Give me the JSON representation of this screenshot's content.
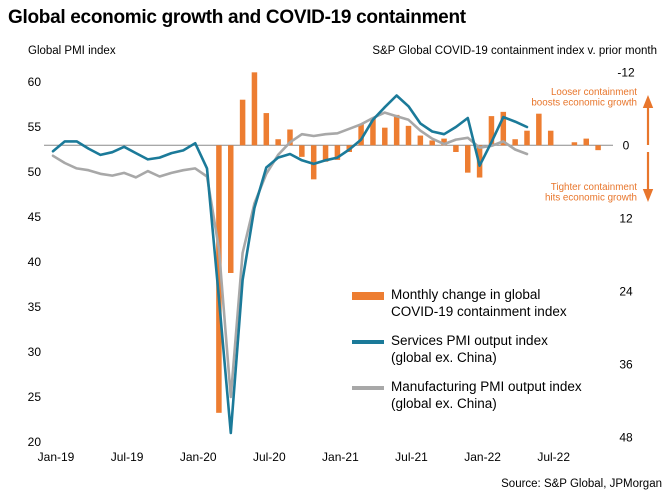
{
  "title": "Global economic growth and COVID-19 containment",
  "left_axis_title": "Global PMI index",
  "right_axis_title": "S&P Global COVID-19 containment index v. prior month",
  "source": "Source: S&P Global, JPMorgan",
  "colors": {
    "bars_orange": "#ED7D31",
    "services_teal": "#1B7A99",
    "manufacturing_gray": "#A8A8A8",
    "zero_line_gray": "#8C8C8C",
    "annotation_orange": "#E8762C",
    "text_black": "#000000"
  },
  "annotations": {
    "looser_lines": [
      "Looser containment",
      "boosts economic growth"
    ],
    "tighter_lines": [
      "Tighter containment",
      "hits economic growth"
    ],
    "looser_arrow": "up-arrow",
    "tighter_arrow": "down-arrow"
  },
  "legend": {
    "items": [
      {
        "label": "Monthly change in global COVID-19 containment index",
        "swatch": "bar",
        "color": "#ED7D31"
      },
      {
        "label": "Services PMI output index (global ex. China)",
        "swatch": "line",
        "color": "#1B7A99"
      },
      {
        "label": "Manufacturing PMI output index (global ex. China)",
        "swatch": "line",
        "color": "#A8A8A8"
      }
    ]
  },
  "chart_data": {
    "type": "bar+line",
    "frequency": "monthly",
    "x_start": "Jan-19",
    "x_tick_labels": [
      "Jan-19",
      "Jul-19",
      "Jan-20",
      "Jul-20",
      "Jan-21",
      "Jul-21",
      "Jan-22",
      "Jul-22"
    ],
    "left_axis": {
      "label": "Global PMI index",
      "ticks": [
        60,
        55,
        50,
        45,
        40,
        35,
        30,
        25,
        20
      ],
      "range": [
        20,
        60
      ]
    },
    "right_axis": {
      "label": "S&P Global COVID-19 containment index v. prior month",
      "ticks": [
        -12,
        0,
        12,
        24,
        36,
        48
      ],
      "range": [
        -12,
        48
      ],
      "inverted": true,
      "zero_aligned_with_left": 53
    },
    "grid": "zero-line-only",
    "legend_position": "inside-lower-right",
    "series": [
      {
        "name": "Monthly change in global COVID-19 containment index",
        "type": "bar",
        "axis": "right",
        "color": "#ED7D31",
        "start": "Mar-20",
        "start_index": 14,
        "values": [
          44,
          21,
          -7.5,
          -12,
          -5.3,
          -1,
          -2.6,
          1.9,
          5.6,
          2.7,
          2.4,
          1.1,
          -3.5,
          -4.5,
          -2.9,
          -5,
          -3.2,
          -1.6,
          -0.8,
          -1.1,
          1.1,
          4.5,
          5.3,
          -4.8,
          -5.5,
          -1,
          -2.4,
          -5.2,
          -2.4,
          0,
          -0.5,
          -1.1,
          0.8
        ]
      },
      {
        "name": "Services PMI output index (global ex. China)",
        "type": "line",
        "axis": "left",
        "color": "#1B7A99",
        "start": "Jan-19",
        "start_index": 0,
        "values": [
          52.3,
          53.4,
          53.4,
          52.6,
          51.9,
          52.2,
          52.8,
          52.1,
          51.4,
          51.6,
          52.1,
          52.4,
          53.2,
          50.4,
          36,
          21,
          38,
          46,
          50.5,
          51.6,
          52,
          51.3,
          50.9,
          51.3,
          51.6,
          52.5,
          53.6,
          55.8,
          57.2,
          58.5,
          57.3,
          55.4,
          54.5,
          54.2,
          55,
          56,
          50.7,
          53.3,
          56.1,
          55.6,
          55
        ]
      },
      {
        "name": "Manufacturing PMI output index (global ex. China)",
        "type": "line",
        "axis": "left",
        "color": "#A8A8A8",
        "start": "Jan-19",
        "start_index": 0,
        "values": [
          51.8,
          51,
          50.4,
          50.2,
          49.8,
          49.6,
          49.9,
          49.4,
          50.1,
          49.5,
          49.9,
          50.2,
          50.4,
          49.5,
          41.5,
          25,
          41,
          46.5,
          49.8,
          51.9,
          53.3,
          54.2,
          54,
          54.2,
          54.3,
          54.8,
          55.3,
          56,
          56.6,
          56.2,
          55.8,
          54.6,
          53.7,
          53.1,
          53.6,
          53.8,
          52.7,
          52.9,
          53.4,
          52.5,
          52
        ]
      }
    ]
  }
}
